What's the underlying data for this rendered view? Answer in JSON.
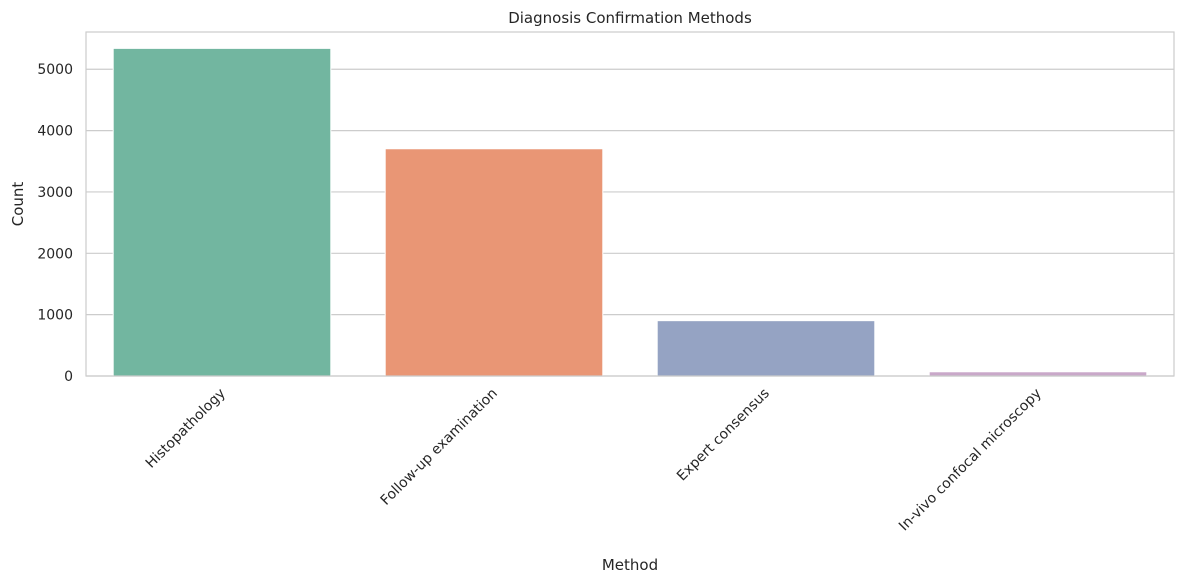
{
  "chart_data": {
    "type": "bar",
    "title": "Diagnosis Confirmation Methods",
    "xlabel": "Method",
    "ylabel": "Count",
    "categories": [
      "Histopathology",
      "Follow-up examination",
      "Expert consensus",
      "In-vivo confocal microscopy"
    ],
    "values": [
      5340,
      3704,
      902,
      69
    ],
    "colors": [
      "#72b6a0",
      "#e99675",
      "#95a3c3",
      "#c9a8c9"
    ],
    "ylim": [
      0,
      5607
    ],
    "yticks": [
      0,
      1000,
      2000,
      3000,
      4000,
      5000
    ],
    "grid": "horizontal",
    "legend": "none"
  }
}
